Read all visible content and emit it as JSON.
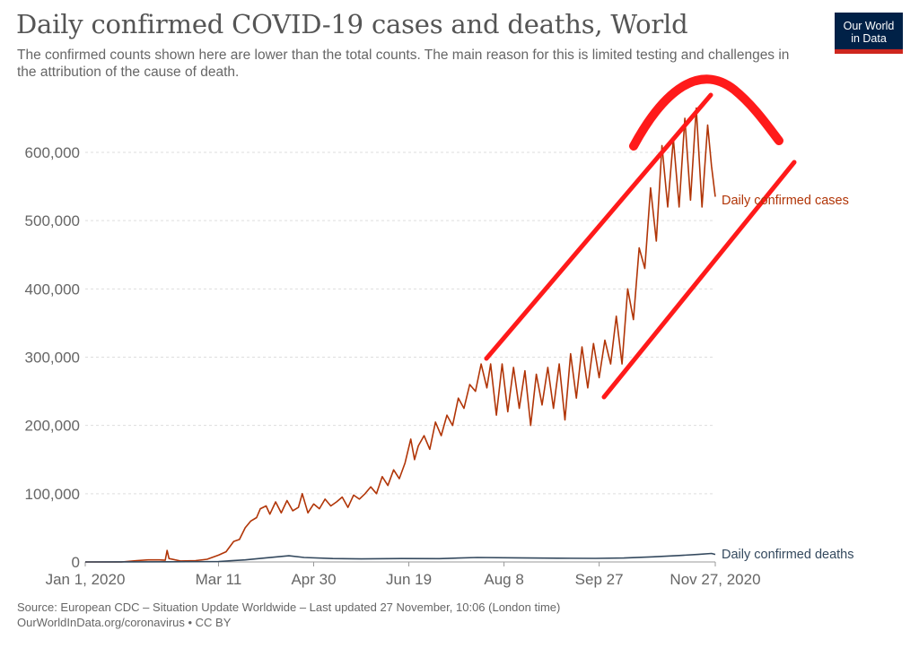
{
  "header": {
    "title": "Daily confirmed COVID-19 cases and deaths, World",
    "subtitle": "The confirmed counts shown here are lower than the total counts. The main reason for this is limited testing and challenges in the attribution of the cause of death."
  },
  "logo": {
    "line1": "Our World",
    "line2": "in Data"
  },
  "footer": {
    "source": "Source: European CDC – Situation Update Worldwide – Last updated 27 November, 10:06 (London time)",
    "credit": "OurWorldInData.org/coronavirus • CC BY"
  },
  "colors": {
    "cases": "#b13507",
    "deaths": "#34495e",
    "annotation": "#ff1a1a",
    "grid": "#dddddd",
    "axis_text": "#666666"
  },
  "chart_data": {
    "type": "line",
    "title": "Daily confirmed COVID-19 cases and deaths, World",
    "ylim": [
      0,
      650000
    ],
    "grid": true,
    "yticks": [
      0,
      100000,
      200000,
      300000,
      400000,
      500000,
      600000
    ],
    "ytick_labels": [
      "0",
      "100,000",
      "200,000",
      "300,000",
      "400,000",
      "500,000",
      "600,000"
    ],
    "xticks": [
      "2020-01-01",
      "2020-03-11",
      "2020-04-30",
      "2020-06-19",
      "2020-08-08",
      "2020-09-27",
      "2020-11-27"
    ],
    "xtick_labels": [
      "Jan 1, 2020",
      "Mar 11",
      "Apr 30",
      "Jun 19",
      "Aug 8",
      "Sep 27",
      "Nov 27, 2020"
    ],
    "series": [
      {
        "name": "Daily confirmed cases",
        "color": "#b13507",
        "points": [
          [
            "2020-01-01",
            0
          ],
          [
            "2020-01-20",
            0
          ],
          [
            "2020-01-28",
            2000
          ],
          [
            "2020-02-03",
            3000
          ],
          [
            "2020-02-09",
            3000
          ],
          [
            "2020-02-12",
            2500
          ],
          [
            "2020-02-13",
            17000
          ],
          [
            "2020-02-14",
            5000
          ],
          [
            "2020-02-20",
            1500
          ],
          [
            "2020-02-28",
            2000
          ],
          [
            "2020-03-05",
            4000
          ],
          [
            "2020-03-11",
            10000
          ],
          [
            "2020-03-15",
            15000
          ],
          [
            "2020-03-19",
            30000
          ],
          [
            "2020-03-22",
            33000
          ],
          [
            "2020-03-25",
            50000
          ],
          [
            "2020-03-28",
            60000
          ],
          [
            "2020-03-31",
            65000
          ],
          [
            "2020-04-02",
            78000
          ],
          [
            "2020-04-05",
            82000
          ],
          [
            "2020-04-07",
            70000
          ],
          [
            "2020-04-10",
            88000
          ],
          [
            "2020-04-13",
            72000
          ],
          [
            "2020-04-16",
            90000
          ],
          [
            "2020-04-19",
            75000
          ],
          [
            "2020-04-22",
            80000
          ],
          [
            "2020-04-24",
            100000
          ],
          [
            "2020-04-27",
            72000
          ],
          [
            "2020-04-30",
            85000
          ],
          [
            "2020-05-03",
            78000
          ],
          [
            "2020-05-06",
            92000
          ],
          [
            "2020-05-09",
            82000
          ],
          [
            "2020-05-12",
            88000
          ],
          [
            "2020-05-15",
            95000
          ],
          [
            "2020-05-18",
            80000
          ],
          [
            "2020-05-21",
            98000
          ],
          [
            "2020-05-24",
            92000
          ],
          [
            "2020-05-27",
            100000
          ],
          [
            "2020-05-30",
            110000
          ],
          [
            "2020-06-02",
            100000
          ],
          [
            "2020-06-05",
            125000
          ],
          [
            "2020-06-08",
            112000
          ],
          [
            "2020-06-11",
            135000
          ],
          [
            "2020-06-14",
            122000
          ],
          [
            "2020-06-17",
            145000
          ],
          [
            "2020-06-20",
            180000
          ],
          [
            "2020-06-22",
            150000
          ],
          [
            "2020-06-24",
            170000
          ],
          [
            "2020-06-27",
            185000
          ],
          [
            "2020-06-30",
            165000
          ],
          [
            "2020-07-03",
            205000
          ],
          [
            "2020-07-06",
            185000
          ],
          [
            "2020-07-09",
            215000
          ],
          [
            "2020-07-12",
            200000
          ],
          [
            "2020-07-15",
            240000
          ],
          [
            "2020-07-18",
            225000
          ],
          [
            "2020-07-21",
            260000
          ],
          [
            "2020-07-24",
            250000
          ],
          [
            "2020-07-27",
            290000
          ],
          [
            "2020-07-30",
            255000
          ],
          [
            "2020-08-01",
            290000
          ],
          [
            "2020-08-04",
            215000
          ],
          [
            "2020-08-07",
            290000
          ],
          [
            "2020-08-10",
            220000
          ],
          [
            "2020-08-13",
            285000
          ],
          [
            "2020-08-16",
            225000
          ],
          [
            "2020-08-19",
            280000
          ],
          [
            "2020-08-22",
            200000
          ],
          [
            "2020-08-25",
            275000
          ],
          [
            "2020-08-28",
            230000
          ],
          [
            "2020-08-31",
            285000
          ],
          [
            "2020-09-03",
            225000
          ],
          [
            "2020-09-06",
            290000
          ],
          [
            "2020-09-09",
            208000
          ],
          [
            "2020-09-12",
            305000
          ],
          [
            "2020-09-15",
            240000
          ],
          [
            "2020-09-18",
            315000
          ],
          [
            "2020-09-21",
            255000
          ],
          [
            "2020-09-24",
            320000
          ],
          [
            "2020-09-27",
            270000
          ],
          [
            "2020-09-30",
            325000
          ],
          [
            "2020-10-03",
            290000
          ],
          [
            "2020-10-06",
            360000
          ],
          [
            "2020-10-09",
            290000
          ],
          [
            "2020-10-12",
            400000
          ],
          [
            "2020-10-15",
            355000
          ],
          [
            "2020-10-18",
            460000
          ],
          [
            "2020-10-21",
            430000
          ],
          [
            "2020-10-24",
            548000
          ],
          [
            "2020-10-27",
            470000
          ],
          [
            "2020-10-30",
            610000
          ],
          [
            "2020-11-02",
            520000
          ],
          [
            "2020-11-05",
            620000
          ],
          [
            "2020-11-08",
            520000
          ],
          [
            "2020-11-11",
            650000
          ],
          [
            "2020-11-14",
            530000
          ],
          [
            "2020-11-17",
            665000
          ],
          [
            "2020-11-20",
            520000
          ],
          [
            "2020-11-23",
            640000
          ],
          [
            "2020-11-25",
            580000
          ],
          [
            "2020-11-27",
            535000
          ]
        ]
      },
      {
        "name": "Daily confirmed deaths",
        "color": "#34495e",
        "points": [
          [
            "2020-01-01",
            0
          ],
          [
            "2020-02-15",
            200
          ],
          [
            "2020-03-11",
            600
          ],
          [
            "2020-03-25",
            3000
          ],
          [
            "2020-04-05",
            6000
          ],
          [
            "2020-04-17",
            9000
          ],
          [
            "2020-04-25",
            6500
          ],
          [
            "2020-05-10",
            5000
          ],
          [
            "2020-05-25",
            4500
          ],
          [
            "2020-06-15",
            5000
          ],
          [
            "2020-07-05",
            4800
          ],
          [
            "2020-07-25",
            6500
          ],
          [
            "2020-08-15",
            6000
          ],
          [
            "2020-09-05",
            5500
          ],
          [
            "2020-09-25",
            5300
          ],
          [
            "2020-10-10",
            5800
          ],
          [
            "2020-10-25",
            7500
          ],
          [
            "2020-11-08",
            9500
          ],
          [
            "2020-11-18",
            11000
          ],
          [
            "2020-11-25",
            12500
          ],
          [
            "2020-11-27",
            11000
          ]
        ]
      }
    ]
  }
}
